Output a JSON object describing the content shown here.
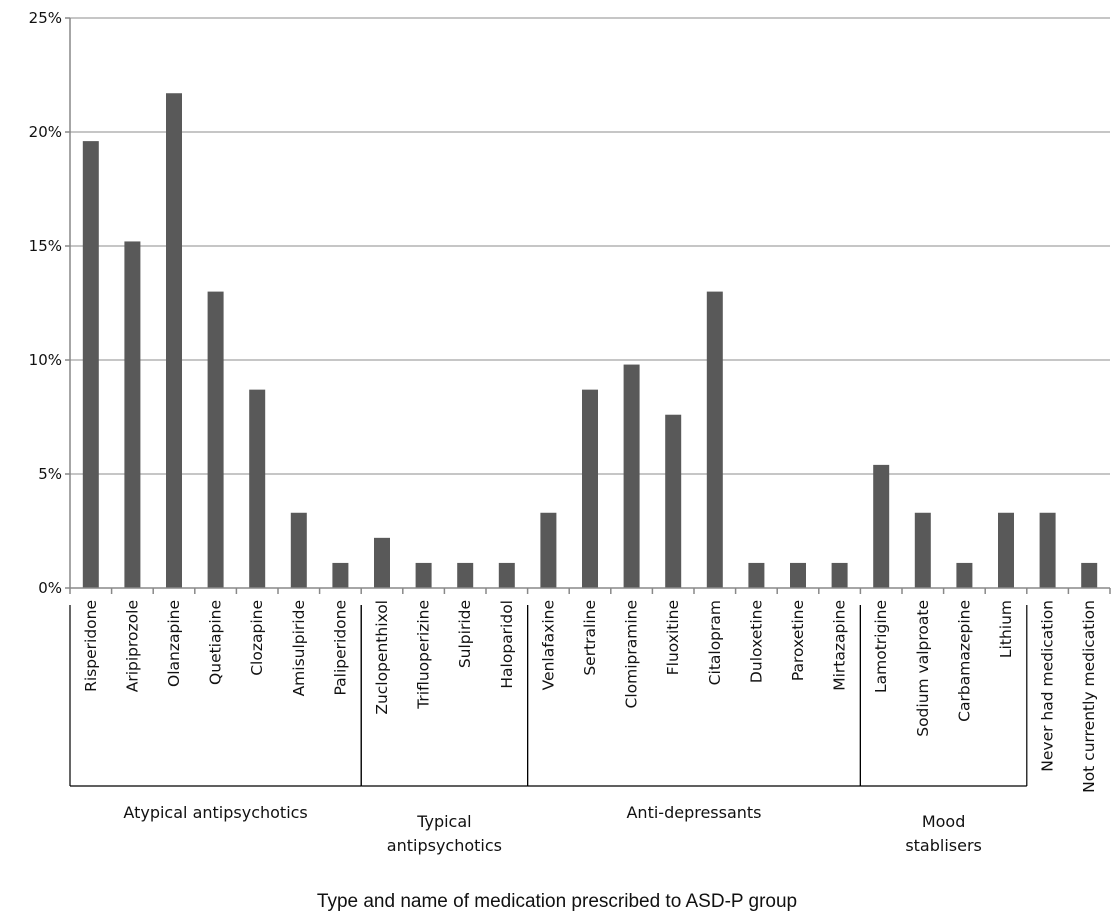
{
  "chart_data": {
    "type": "bar",
    "xlabel": "Type and name of medication prescribed to ASD-P group",
    "ylabel": "",
    "ylim": [
      0,
      25
    ],
    "y_ticks": [
      "0%",
      "5%",
      "10%",
      "15%",
      "20%",
      "25%"
    ],
    "grid": "horizontal",
    "bar_color": "#595959",
    "categories": [
      "Risperidone",
      "Aripiprozole",
      "Olanzapine",
      "Quetiapine",
      "Clozapine",
      "Amisulpiride",
      "Paliperidone",
      "Zuclopenthixol",
      "Trifluoperizine",
      "Sulpiride",
      "Haloparidol",
      "Venlafaxine",
      "Sertraline",
      "Clomipramine",
      "Fluoxitine",
      "Citalopram",
      "Duloxetine",
      "Paroxetine",
      "Mirtazapine",
      "Lamotrigine",
      "Sodium valproate",
      "Carbamazepine",
      "Lithium",
      "Never had medication",
      "Not currently medication"
    ],
    "values": [
      19.6,
      15.2,
      21.7,
      13.0,
      8.7,
      3.3,
      1.1,
      2.2,
      1.1,
      1.1,
      1.1,
      3.3,
      8.7,
      9.8,
      7.6,
      13.0,
      1.1,
      1.1,
      1.1,
      5.4,
      3.3,
      1.1,
      3.3,
      3.3,
      1.1
    ],
    "groups": [
      {
        "label_lines": [
          "Atypical antipsychotics"
        ],
        "start": 0,
        "end": 6
      },
      {
        "label_lines": [
          "Typical",
          "antipsychotics"
        ],
        "start": 7,
        "end": 10
      },
      {
        "label_lines": [
          "Anti-depressants"
        ],
        "start": 11,
        "end": 18
      },
      {
        "label_lines": [
          "Mood",
          "stablisers"
        ],
        "start": 19,
        "end": 22
      }
    ]
  }
}
